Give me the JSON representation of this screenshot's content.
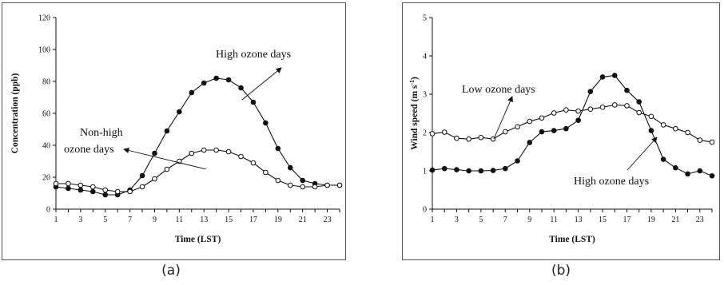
{
  "captions": {
    "a": "(a)",
    "b": "(b)"
  },
  "chart_data": [
    {
      "type": "line",
      "title": "",
      "xlabel": "Time (LST)",
      "ylabel": "Concentration (ppb)",
      "xlim": [
        1,
        24
      ],
      "ylim": [
        0,
        120
      ],
      "x_ticks": [
        1,
        3,
        5,
        7,
        9,
        11,
        13,
        15,
        17,
        19,
        21,
        23
      ],
      "y_ticks": [
        0,
        20,
        40,
        60,
        80,
        100,
        120
      ],
      "grid": false,
      "x": [
        1,
        2,
        3,
        4,
        5,
        6,
        7,
        8,
        9,
        10,
        11,
        12,
        13,
        14,
        15,
        16,
        17,
        18,
        19,
        20,
        21,
        22,
        23,
        24
      ],
      "series": [
        {
          "marker": "filled-circle",
          "values": [
            14,
            13,
            12,
            11,
            9,
            9,
            12,
            21,
            35,
            49,
            61,
            73,
            79,
            82,
            81,
            76,
            67,
            54,
            38,
            26,
            18,
            16,
            15,
            15
          ]
        },
        {
          "marker": "open-circle",
          "values": [
            16,
            16,
            15,
            14,
            12,
            11,
            11,
            14,
            19,
            25,
            30,
            35,
            37,
            37,
            36,
            33,
            29,
            23,
            18,
            15,
            14,
            14,
            15,
            15
          ]
        }
      ],
      "annotations": [
        {
          "text": "High ozone days"
        },
        {
          "text": "Non-high"
        },
        {
          "text": "ozone days"
        }
      ]
    },
    {
      "type": "line",
      "title": "",
      "xlabel": "Time (LST)",
      "ylabel": "Wind speed (m s-1)",
      "xlim": [
        1,
        24
      ],
      "ylim": [
        0,
        5
      ],
      "x_ticks": [
        1,
        3,
        5,
        7,
        9,
        11,
        13,
        15,
        17,
        19,
        21,
        23
      ],
      "y_ticks": [
        0,
        1,
        2,
        3,
        4,
        5
      ],
      "grid": false,
      "x": [
        1,
        2,
        3,
        4,
        5,
        6,
        7,
        8,
        9,
        10,
        11,
        12,
        13,
        14,
        15,
        16,
        17,
        18,
        19,
        20,
        21,
        22,
        23,
        24
      ],
      "series": [
        {
          "marker": "open-circle",
          "values": [
            1.97,
            2.01,
            1.85,
            1.83,
            1.87,
            1.83,
            2.02,
            2.15,
            2.29,
            2.38,
            2.51,
            2.59,
            2.56,
            2.61,
            2.66,
            2.72,
            2.7,
            2.52,
            2.42,
            2.2,
            2.1,
            2.0,
            1.8,
            1.75
          ]
        },
        {
          "marker": "filled-circle",
          "values": [
            1.02,
            1.06,
            1.03,
            1.0,
            1.0,
            1.01,
            1.06,
            1.26,
            1.74,
            2.02,
            2.05,
            2.1,
            2.32,
            3.07,
            3.45,
            3.49,
            3.1,
            2.8,
            2.05,
            1.3,
            1.08,
            0.92,
            1.0,
            0.87
          ]
        }
      ],
      "annotations": [
        {
          "text": "Low ozone days"
        },
        {
          "text": "High ozone days"
        }
      ]
    }
  ]
}
